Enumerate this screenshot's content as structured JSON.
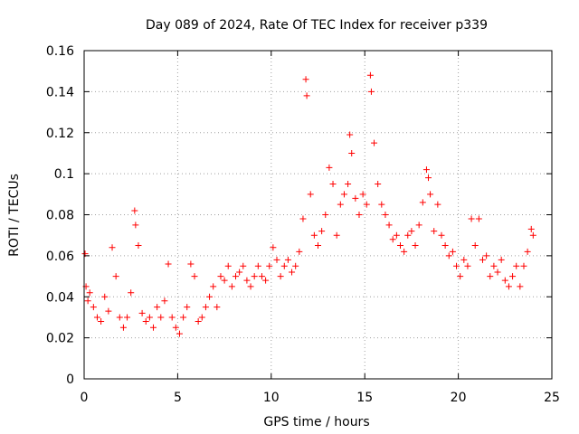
{
  "chart_data": {
    "type": "scatter",
    "title": "Day 089 of 2024, Rate Of TEC Index for receiver p339",
    "xlabel": "GPS time / hours",
    "ylabel": "ROTI / TECUs",
    "xlim": [
      0,
      25
    ],
    "ylim": [
      0,
      0.16
    ],
    "xticks": [
      0,
      5,
      10,
      15,
      20,
      25
    ],
    "xtick_labels": [
      "0",
      "5",
      "10",
      "15",
      "20",
      "25"
    ],
    "yticks": [
      0,
      0.02,
      0.04,
      0.06,
      0.08,
      0.1,
      0.12,
      0.14,
      0.16
    ],
    "ytick_labels": [
      "0",
      "0.02",
      "0.04",
      "0.06",
      "0.08",
      "0.1",
      "0.12",
      "0.14",
      "0.16"
    ],
    "grid": true,
    "marker": "+",
    "marker_color": "#ff0000",
    "series": [
      {
        "name": "ROTI",
        "x": [
          0.05,
          0.1,
          0.2,
          0.3,
          0.5,
          0.7,
          0.9,
          1.1,
          1.3,
          1.5,
          1.7,
          1.9,
          2.1,
          2.3,
          2.5,
          2.7,
          2.75,
          2.9,
          3.1,
          3.3,
          3.5,
          3.7,
          3.9,
          4.1,
          4.3,
          4.5,
          4.7,
          4.9,
          5.1,
          5.3,
          5.5,
          5.7,
          5.9,
          6.1,
          6.3,
          6.5,
          6.7,
          6.9,
          7.1,
          7.3,
          7.5,
          7.7,
          7.9,
          8.1,
          8.3,
          8.5,
          8.7,
          8.9,
          9.1,
          9.3,
          9.5,
          9.7,
          9.9,
          10.1,
          10.3,
          10.5,
          10.7,
          10.9,
          11.1,
          11.3,
          11.5,
          11.7,
          11.85,
          11.9,
          12.1,
          12.3,
          12.5,
          12.7,
          12.9,
          13.1,
          13.3,
          13.5,
          13.7,
          13.9,
          14.1,
          14.2,
          14.3,
          14.5,
          14.7,
          14.9,
          15.1,
          15.3,
          15.35,
          15.5,
          15.7,
          15.9,
          16.1,
          16.3,
          16.5,
          16.7,
          16.9,
          17.1,
          17.3,
          17.5,
          17.7,
          17.9,
          18.1,
          18.3,
          18.4,
          18.5,
          18.7,
          18.9,
          19.1,
          19.3,
          19.5,
          19.7,
          19.9,
          20.1,
          20.3,
          20.5,
          20.7,
          20.9,
          21.1,
          21.3,
          21.5,
          21.7,
          21.9,
          22.1,
          22.3,
          22.5,
          22.7,
          22.9,
          23.1,
          23.3,
          23.5,
          23.7,
          23.9,
          24.0
        ],
        "values": [
          0.061,
          0.045,
          0.038,
          0.042,
          0.035,
          0.03,
          0.028,
          0.04,
          0.033,
          0.064,
          0.05,
          0.03,
          0.025,
          0.03,
          0.042,
          0.082,
          0.075,
          0.065,
          0.032,
          0.028,
          0.03,
          0.025,
          0.035,
          0.03,
          0.038,
          0.056,
          0.03,
          0.025,
          0.022,
          0.03,
          0.035,
          0.056,
          0.05,
          0.028,
          0.03,
          0.035,
          0.04,
          0.045,
          0.035,
          0.05,
          0.048,
          0.055,
          0.045,
          0.05,
          0.052,
          0.055,
          0.048,
          0.045,
          0.05,
          0.055,
          0.05,
          0.048,
          0.055,
          0.064,
          0.058,
          0.05,
          0.055,
          0.058,
          0.052,
          0.055,
          0.062,
          0.078,
          0.146,
          0.138,
          0.09,
          0.07,
          0.065,
          0.072,
          0.08,
          0.103,
          0.095,
          0.07,
          0.085,
          0.09,
          0.095,
          0.119,
          0.11,
          0.088,
          0.08,
          0.09,
          0.085,
          0.148,
          0.14,
          0.115,
          0.095,
          0.085,
          0.08,
          0.075,
          0.068,
          0.07,
          0.065,
          0.062,
          0.07,
          0.072,
          0.065,
          0.075,
          0.086,
          0.102,
          0.098,
          0.09,
          0.072,
          0.085,
          0.07,
          0.065,
          0.06,
          0.062,
          0.055,
          0.05,
          0.058,
          0.055,
          0.078,
          0.065,
          0.078,
          0.058,
          0.06,
          0.05,
          0.055,
          0.052,
          0.058,
          0.048,
          0.045,
          0.05,
          0.055,
          0.045,
          0.055,
          0.062,
          0.073,
          0.07
        ]
      }
    ]
  }
}
